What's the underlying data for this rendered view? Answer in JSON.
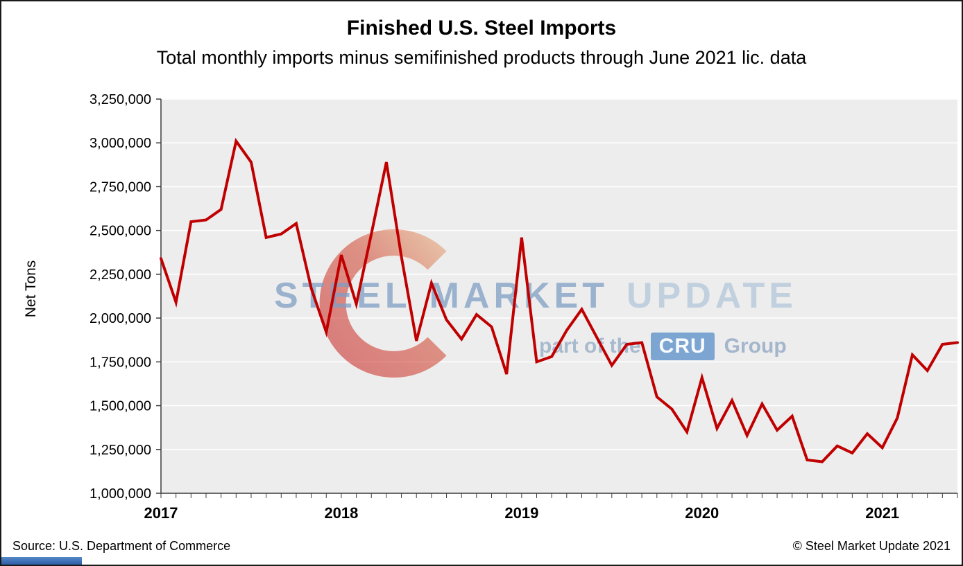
{
  "title": "Finished U.S. Steel Imports",
  "subtitle": "Total monthly imports minus semifinished products through June 2021 lic. data",
  "footer": {
    "source": "Source: U.S. Department of Commerce",
    "copyright": "© Steel Market Update 2021"
  },
  "watermark": {
    "steel": "STEEL",
    "market": "MARKET",
    "update": "UPDATE",
    "part_of_the": "part of the",
    "cru": "CRU",
    "group": "Group"
  },
  "chart_data": {
    "type": "line",
    "title": "Finished U.S. Steel Imports",
    "subtitle": "Total monthly imports minus semifinished products through June 2021 lic. data",
    "xlabel": "",
    "ylabel": "Net Tons",
    "ylim": [
      1000000,
      3250000
    ],
    "ytick_values": [
      1000000,
      1250000,
      1500000,
      1750000,
      2000000,
      2250000,
      2500000,
      2750000,
      3000000,
      3250000
    ],
    "ytick_labels": [
      "1,000,000",
      "1,250,000",
      "1,500,000",
      "1,750,000",
      "2,000,000",
      "2,250,000",
      "2,500,000",
      "2,750,000",
      "3,000,000",
      "3,250,000"
    ],
    "grid": "horizontal-white-on-gray",
    "legend": "none",
    "line_color": "#C00000",
    "plot_bg": "#EDEDED",
    "axis_color": "#3c3c3c",
    "x_year_labels": [
      {
        "label": "2017",
        "month_index": 0
      },
      {
        "label": "2018",
        "month_index": 12
      },
      {
        "label": "2019",
        "month_index": 24
      },
      {
        "label": "2020",
        "month_index": 36
      },
      {
        "label": "2021",
        "month_index": 48
      }
    ],
    "x": [
      "2017-01",
      "2017-02",
      "2017-03",
      "2017-04",
      "2017-05",
      "2017-06",
      "2017-07",
      "2017-08",
      "2017-09",
      "2017-10",
      "2017-11",
      "2017-12",
      "2018-01",
      "2018-02",
      "2018-03",
      "2018-04",
      "2018-05",
      "2018-06",
      "2018-07",
      "2018-08",
      "2018-09",
      "2018-10",
      "2018-11",
      "2018-12",
      "2019-01",
      "2019-02",
      "2019-03",
      "2019-04",
      "2019-05",
      "2019-06",
      "2019-07",
      "2019-08",
      "2019-09",
      "2019-10",
      "2019-11",
      "2019-12",
      "2020-01",
      "2020-02",
      "2020-03",
      "2020-04",
      "2020-05",
      "2020-06",
      "2020-07",
      "2020-08",
      "2020-09",
      "2020-10",
      "2020-11",
      "2020-12",
      "2021-01",
      "2021-02",
      "2021-03",
      "2021-04",
      "2021-05",
      "2021-06"
    ],
    "series": [
      {
        "name": "Finished U.S. Steel Imports (Net Tons)",
        "values": [
          2340000,
          2090000,
          2550000,
          2560000,
          2620000,
          3010000,
          2890000,
          2460000,
          2480000,
          2540000,
          2170000,
          1920000,
          2360000,
          2080000,
          2480000,
          2890000,
          2350000,
          1870000,
          2200000,
          1990000,
          1880000,
          2020000,
          1950000,
          1680000,
          2460000,
          1750000,
          1780000,
          1930000,
          2050000,
          1890000,
          1730000,
          1850000,
          1860000,
          1550000,
          1480000,
          1350000,
          1660000,
          1370000,
          1530000,
          1330000,
          1510000,
          1360000,
          1440000,
          1190000,
          1180000,
          1270000,
          1230000,
          1340000,
          1260000,
          1430000,
          1790000,
          1700000,
          1850000,
          1860000
        ]
      }
    ]
  }
}
